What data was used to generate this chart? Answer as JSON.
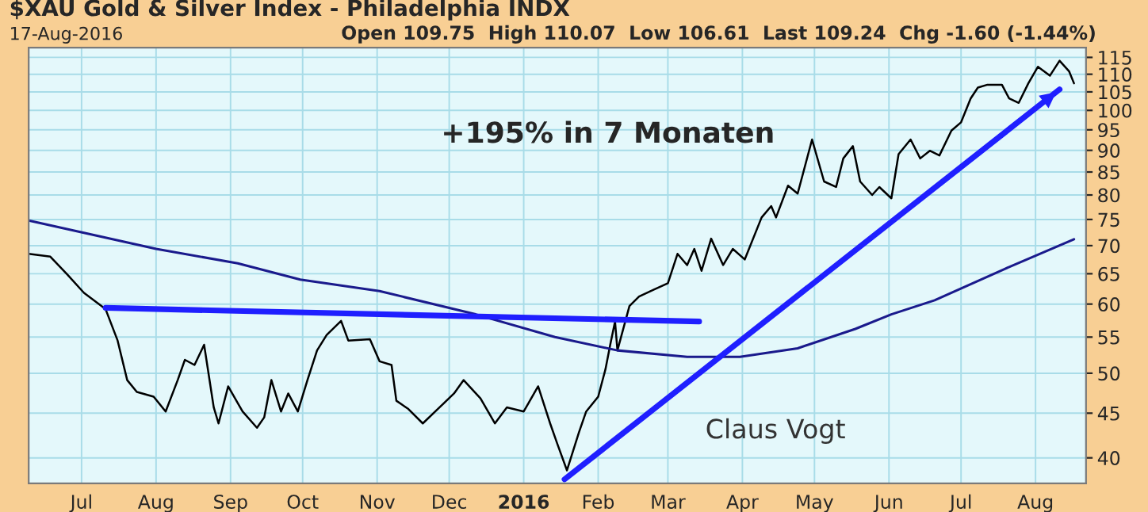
{
  "chart_data": {
    "type": "line",
    "title": "$XAU Gold & Silver Index - Philadelphia INDX",
    "subtitle": "17-Aug-2016",
    "annotations": [
      "Open 109.75  High 110.07  Low 106.61  Last 109.24  Chg -1.60 (-1.44%)",
      "+195% in 7 Monaten",
      "Claus Vogt"
    ],
    "log": "y",
    "grid": true,
    "legend": false,
    "marker": "none",
    "line_style": "solid",
    "xlim": [
      "2015-06-09",
      "2016-08-22"
    ],
    "xticks": [
      {
        "value": "2015-07-01",
        "label": "Jul"
      },
      {
        "value": "2015-08-01",
        "label": "Aug"
      },
      {
        "value": "2015-09-01",
        "label": "Sep"
      },
      {
        "value": "2015-10-01",
        "label": "Oct"
      },
      {
        "value": "2015-11-01",
        "label": "Nov"
      },
      {
        "value": "2015-12-01",
        "label": "Dec"
      },
      {
        "value": "2016-01-01",
        "label": "2016"
      },
      {
        "value": "2016-02-01",
        "label": "Feb"
      },
      {
        "value": "2016-03-01",
        "label": "Mar"
      },
      {
        "value": "2016-04-01",
        "label": "Apr"
      },
      {
        "value": "2016-05-01",
        "label": "May"
      },
      {
        "value": "2016-06-01",
        "label": "Jun"
      },
      {
        "value": "2016-07-01",
        "label": "Jul"
      },
      {
        "value": "2016-08-01",
        "label": "Aug"
      }
    ],
    "ylim": [
      37.4,
      118
    ],
    "yticks": [
      40,
      45,
      50,
      55,
      60,
      65,
      70,
      75,
      80,
      85,
      90,
      95,
      100,
      105,
      110,
      115
    ],
    "series": [
      {
        "color": "#000000",
        "x": [
          "2015-06-09",
          "2015-06-18",
          "2015-06-25",
          "2015-07-02",
          "2015-07-11",
          "2015-07-16",
          "2015-07-20",
          "2015-07-24",
          "2015-07-31",
          "2015-08-05",
          "2015-08-10",
          "2015-08-13",
          "2015-08-17",
          "2015-08-21",
          "2015-08-25",
          "2015-08-27",
          "2015-08-31",
          "2015-09-06",
          "2015-09-12",
          "2015-09-15",
          "2015-09-18",
          "2015-09-22",
          "2015-09-25",
          "2015-09-29",
          "2015-10-03",
          "2015-10-07",
          "2015-10-11",
          "2015-10-17",
          "2015-10-20",
          "2015-10-29",
          "2015-11-02",
          "2015-11-07",
          "2015-11-09",
          "2015-11-14",
          "2015-11-20",
          "2015-11-27",
          "2015-12-03",
          "2015-12-07",
          "2015-12-14",
          "2015-12-20",
          "2015-12-25",
          "2016-01-01",
          "2016-01-07",
          "2016-01-12",
          "2016-01-15",
          "2016-01-19",
          "2016-01-24",
          "2016-01-27",
          "2016-02-01",
          "2016-02-04",
          "2016-02-06",
          "2016-02-08",
          "2016-02-09",
          "2016-02-14",
          "2016-02-18",
          "2016-02-24",
          "2016-03-01",
          "2016-03-05",
          "2016-03-09",
          "2016-03-12",
          "2016-03-15",
          "2016-03-19",
          "2016-03-24",
          "2016-03-28",
          "2016-04-02",
          "2016-04-09",
          "2016-04-13",
          "2016-04-15",
          "2016-04-20",
          "2016-04-24",
          "2016-04-30",
          "2016-05-05",
          "2016-05-10",
          "2016-05-13",
          "2016-05-17",
          "2016-05-20",
          "2016-05-25",
          "2016-05-28",
          "2016-06-02",
          "2016-06-05",
          "2016-06-10",
          "2016-06-14",
          "2016-06-18",
          "2016-06-22",
          "2016-06-27",
          "2016-07-01",
          "2016-07-05",
          "2016-07-08",
          "2016-07-12",
          "2016-07-18",
          "2016-07-21",
          "2016-07-25",
          "2016-07-29",
          "2016-08-02",
          "2016-08-07",
          "2016-08-11",
          "2016-08-15",
          "2016-08-17"
        ],
        "values": [
          68.5,
          68,
          64.9,
          61.8,
          59.2,
          54.5,
          49.1,
          47.6,
          47,
          45.2,
          49.1,
          51.8,
          51.1,
          53.9,
          45.7,
          43.8,
          48.3,
          45.2,
          43.3,
          44.5,
          49.1,
          45.2,
          47.4,
          45.2,
          49.1,
          53.1,
          55.3,
          57.4,
          54.5,
          54.7,
          51.6,
          51.1,
          46.5,
          45.5,
          43.8,
          45.7,
          47.4,
          49.1,
          46.8,
          43.8,
          45.7,
          45.2,
          48.3,
          43.8,
          41.5,
          38.7,
          42.8,
          45.2,
          47,
          50.5,
          53.9,
          57.3,
          53.1,
          59.7,
          61.2,
          62.3,
          63.4,
          68.5,
          66.5,
          69.4,
          65.5,
          71.3,
          66.5,
          69.4,
          67.5,
          75.4,
          77.7,
          75.4,
          82,
          80.3,
          92.6,
          82.9,
          81.7,
          88.1,
          91,
          82.9,
          80,
          81.7,
          79.3,
          89.1,
          92.6,
          88.1,
          89.9,
          88.8,
          94.8,
          96.9,
          103.2,
          106.2,
          107,
          107,
          103.2,
          102,
          107.4,
          112.2,
          109.6,
          114,
          110.8,
          107.4
        ]
      },
      {
        "color": "#1a1a8c",
        "x": [
          "2015-06-09",
          "2015-08-01",
          "2015-09-04",
          "2015-09-30",
          "2015-11-02",
          "2015-12-12",
          "2016-01-14",
          "2016-02-09",
          "2016-03-09",
          "2016-03-31",
          "2016-04-24",
          "2016-05-18",
          "2016-06-02",
          "2016-06-20",
          "2016-07-19",
          "2016-08-17"
        ],
        "values": [
          74.8,
          69.4,
          66.8,
          64,
          62.1,
          58.4,
          55,
          53.1,
          52.2,
          52.2,
          53.4,
          56.2,
          58.4,
          60.6,
          65.8,
          71.2
        ]
      },
      {
        "color": "#1f1fff",
        "x": [
          "2015-07-11",
          "2016-03-14"
        ],
        "values": [
          59.4,
          57.3
        ]
      },
      {
        "color": "#1f1fff",
        "x": [
          "2016-01-18",
          "2016-08-11"
        ],
        "values": [
          37.8,
          105.7
        ]
      }
    ]
  }
}
